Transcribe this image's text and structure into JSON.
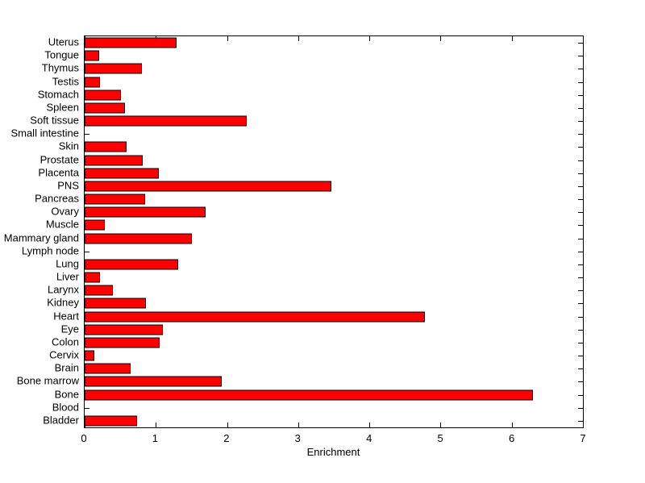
{
  "chart_data": {
    "type": "bar",
    "orientation": "horizontal",
    "title": "",
    "xlabel": "Enrichment",
    "ylabel": "",
    "xlim": [
      0,
      7
    ],
    "xticks": [
      0,
      1,
      2,
      3,
      4,
      5,
      6,
      7
    ],
    "grid": false,
    "legend": null,
    "bar_color": "#ff0000",
    "bar_edge_color": "#000000",
    "axis_color": "#000000",
    "background_color": "#ffffff",
    "categories": [
      "Uterus",
      "Tongue",
      "Thymus",
      "Testis",
      "Stomach",
      "Spleen",
      "Soft tissue",
      "Small intestine",
      "Skin",
      "Prostate",
      "Placenta",
      "PNS",
      "Pancreas",
      "Ovary",
      "Muscle",
      "Mammary gland",
      "Lymph node",
      "Lung",
      "Liver",
      "Larynx",
      "Kidney",
      "Heart",
      "Eye",
      "Colon",
      "Cervix",
      "Brain",
      "Bone marrow",
      "Bone",
      "Blood",
      "Bladder"
    ],
    "values": [
      1.29,
      0.2,
      0.8,
      0.21,
      0.51,
      0.57,
      2.28,
      0,
      0.59,
      0.81,
      1.04,
      3.47,
      0.85,
      1.7,
      0.28,
      1.51,
      0,
      1.31,
      0.22,
      0.4,
      0.86,
      4.78,
      1.1,
      1.05,
      0.14,
      0.64,
      1.92,
      6.3,
      0,
      0.74
    ],
    "category_order_on_screen": "top-to-bottom"
  }
}
